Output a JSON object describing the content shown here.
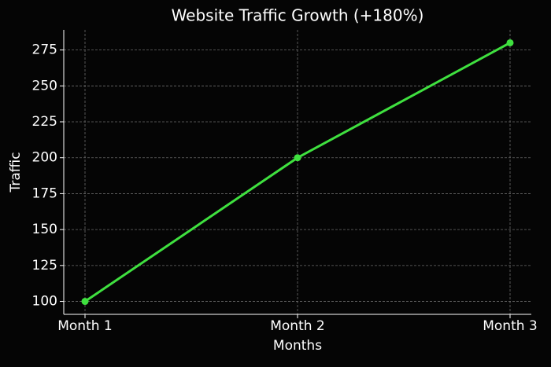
{
  "chart_data": {
    "type": "line",
    "title": "Website Traffic Growth (+180%)",
    "x_label": "Months",
    "y_label": "Traffic",
    "categories": [
      "Month 1",
      "Month 2",
      "Month 3"
    ],
    "values": [
      100,
      200,
      280
    ],
    "color": "#3fe03f",
    "ylim": [
      91,
      289
    ],
    "yticks": [
      100,
      125,
      150,
      175,
      200,
      225,
      250,
      275
    ],
    "grid": true
  }
}
